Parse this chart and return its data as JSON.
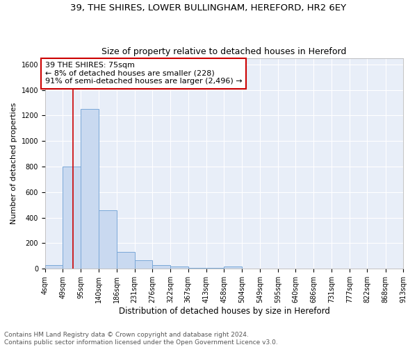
{
  "title1": "39, THE SHIRES, LOWER BULLINGHAM, HEREFORD, HR2 6EY",
  "title2": "Size of property relative to detached houses in Hereford",
  "xlabel": "Distribution of detached houses by size in Hereford",
  "ylabel": "Number of detached properties",
  "bin_edges": [
    4,
    49,
    95,
    140,
    186,
    231,
    276,
    322,
    367,
    413,
    458,
    504,
    549,
    595,
    640,
    686,
    731,
    777,
    822,
    868,
    913
  ],
  "bar_heights": [
    30,
    800,
    1250,
    460,
    130,
    65,
    28,
    20,
    5,
    5,
    20,
    0,
    0,
    0,
    0,
    0,
    0,
    0,
    0,
    0
  ],
  "bar_color": "#c9d9f0",
  "bar_edgecolor": "#7aa8d8",
  "vline_x": 75,
  "vline_color": "#cc0000",
  "annotation_line1": "39 THE SHIRES: 75sqm",
  "annotation_line2": "← 8% of detached houses are smaller (228)",
  "annotation_line3": "91% of semi-detached houses are larger (2,496) →",
  "annotation_box_color": "#ffffff",
  "annotation_box_edgecolor": "#cc0000",
  "ylim": [
    0,
    1650
  ],
  "yticks": [
    0,
    200,
    400,
    600,
    800,
    1000,
    1200,
    1400,
    1600
  ],
  "background_color": "#e8eef8",
  "footer_text": "Contains HM Land Registry data © Crown copyright and database right 2024.\nContains public sector information licensed under the Open Government Licence v3.0.",
  "title1_fontsize": 9.5,
  "title2_fontsize": 9,
  "xlabel_fontsize": 8.5,
  "ylabel_fontsize": 8,
  "tick_fontsize": 7,
  "annotation_fontsize": 8,
  "footer_fontsize": 6.5
}
